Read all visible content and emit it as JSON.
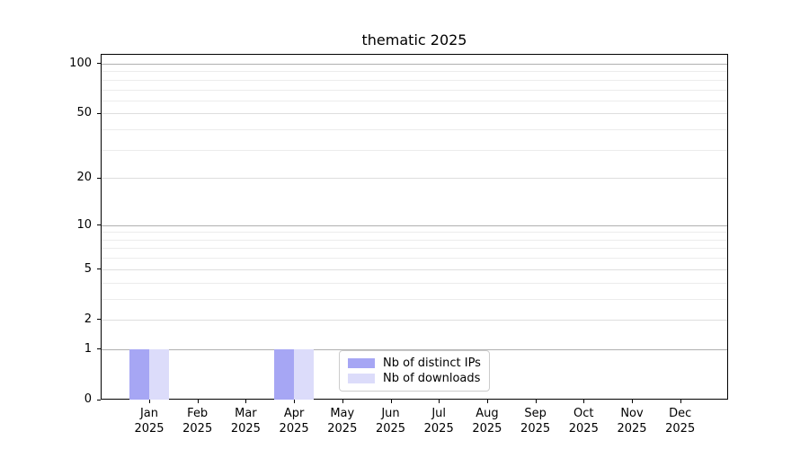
{
  "chart_data": {
    "type": "bar",
    "title": "thematic 2025",
    "categories": [
      "Jan 2025",
      "Feb 2025",
      "Mar 2025",
      "Apr 2025",
      "May 2025",
      "Jun 2025",
      "Jul 2025",
      "Aug 2025",
      "Sep 2025",
      "Oct 2025",
      "Nov 2025",
      "Dec 2025"
    ],
    "series": [
      {
        "name": "Nb of distinct IPs",
        "color": "#a6a6f4",
        "values": [
          1,
          0,
          0,
          1,
          0,
          0,
          0,
          0,
          0,
          0,
          0,
          0
        ]
      },
      {
        "name": "Nb of downloads",
        "color": "#dcdcfa",
        "values": [
          1,
          0,
          0,
          1,
          0,
          0,
          0,
          0,
          0,
          0,
          0,
          0
        ]
      }
    ],
    "xlabel": "",
    "ylabel": "",
    "scale": "log1p",
    "ylim": [
      0,
      115
    ],
    "yticks_labeled": [
      0,
      1,
      2,
      5,
      10,
      20,
      50,
      100
    ],
    "gridlines_decade": [
      1,
      10,
      100
    ],
    "gridlines_labeled": [
      2,
      5,
      20,
      50
    ],
    "gridlines_minor": [
      3,
      4,
      6,
      7,
      8,
      9,
      30,
      40,
      60,
      70,
      80,
      90
    ],
    "grid": true,
    "legend_position": "lower center (inside plot)",
    "colors": {
      "spine": "#000000",
      "decade_grid": "#b0b0b0",
      "labeled_grid": "#dedede",
      "minor_grid": "#ececec",
      "legend_border": "#cccccc"
    }
  }
}
